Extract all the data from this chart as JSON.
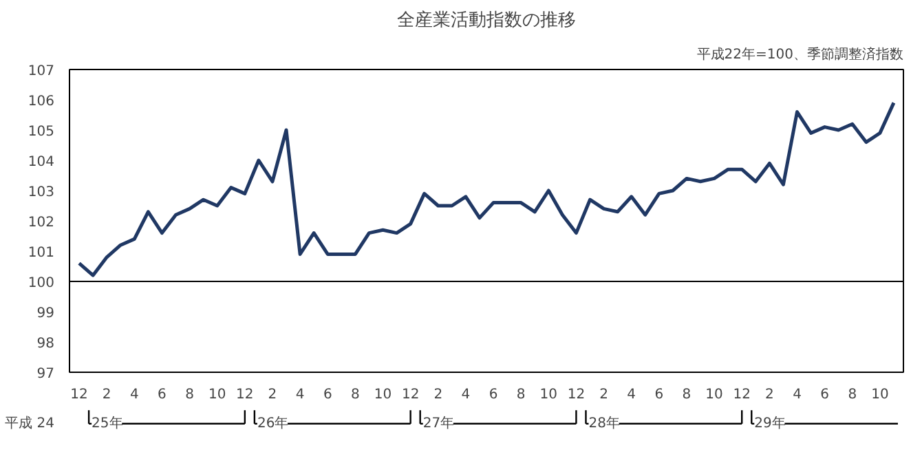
{
  "chart_data": {
    "type": "line",
    "title": "全産業活動指数の推移",
    "subtitle": "平成22年=100、季節調整済指数",
    "categories": [
      "12",
      null,
      "2",
      null,
      "4",
      null,
      "6",
      null,
      "8",
      null,
      "10",
      null,
      "12",
      null,
      "2",
      null,
      "4",
      null,
      "6",
      null,
      "8",
      null,
      "10",
      null,
      "12",
      null,
      "2",
      null,
      "4",
      null,
      "6",
      null,
      "8",
      null,
      "10",
      null,
      "12",
      null,
      "2",
      null,
      "4",
      null,
      "6",
      null,
      "8",
      null,
      "10",
      null,
      "12",
      null,
      "2",
      null,
      "4",
      null,
      "6",
      null,
      "8",
      null,
      "10",
      null
    ],
    "series": [
      {
        "color": "#203864",
        "values": [
          100.6,
          100.2,
          100.8,
          101.2,
          101.4,
          102.3,
          101.6,
          102.2,
          102.4,
          102.7,
          102.5,
          103.1,
          102.9,
          104.0,
          103.3,
          105.0,
          100.9,
          101.6,
          100.9,
          100.9,
          100.9,
          101.6,
          101.7,
          101.6,
          101.9,
          102.9,
          102.5,
          102.5,
          102.8,
          102.1,
          102.6,
          102.6,
          102.6,
          102.3,
          103.0,
          102.2,
          101.6,
          102.7,
          102.4,
          102.3,
          102.8,
          102.2,
          102.9,
          103.0,
          103.4,
          103.3,
          103.4,
          103.7,
          103.7,
          103.3,
          103.9,
          103.2,
          105.6,
          104.9,
          105.1,
          105.0,
          105.2,
          104.6,
          104.9,
          105.9
        ]
      }
    ],
    "ylim": [
      97,
      107
    ],
    "yticks": [
      97,
      98,
      99,
      100,
      101,
      102,
      103,
      104,
      105,
      106,
      107
    ],
    "ref_lines": [
      {
        "axis": "y",
        "value": 100,
        "color": "#000000"
      }
    ],
    "annotations": [
      "平成 24",
      "25年",
      "26年",
      "27年",
      "28年",
      "29年"
    ],
    "grid": false,
    "marker": "none",
    "line_style": "solid"
  }
}
